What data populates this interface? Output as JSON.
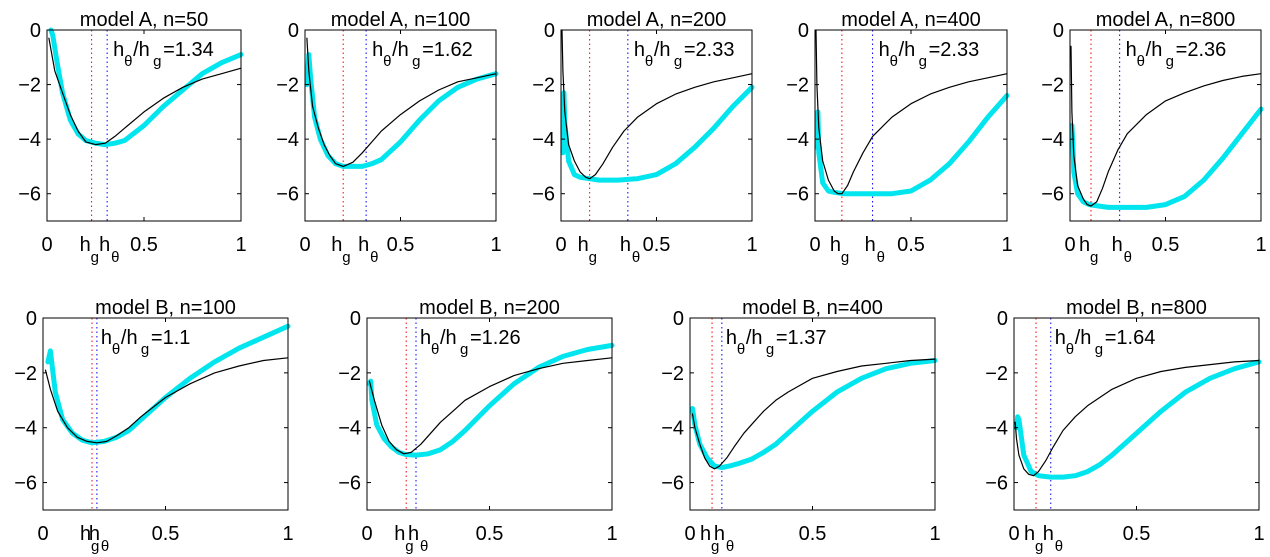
{
  "chart_data": [
    {
      "type": "line",
      "title": "model A, n=50",
      "ratio_label": "=1.34",
      "xlim": [
        0,
        1
      ],
      "ylim": [
        -7,
        0
      ],
      "xticks": [
        "0",
        "0.5",
        "1"
      ],
      "yticks": [
        "0",
        "−2",
        "−4",
        "−6"
      ],
      "h_g": 0.23,
      "h_theta": 0.31,
      "series": [
        {
          "color": "#00e5ee",
          "x": [
            0.02,
            0.03,
            0.05,
            0.08,
            0.12,
            0.16,
            0.2,
            0.25,
            0.3,
            0.35,
            0.4,
            0.5,
            0.6,
            0.7,
            0.8,
            0.9,
            1.0
          ],
          "y": [
            0.0,
            -0.2,
            -1.1,
            -2.3,
            -3.3,
            -3.8,
            -4.05,
            -4.15,
            -4.2,
            -4.15,
            -4.05,
            -3.5,
            -2.8,
            -2.2,
            -1.6,
            -1.2,
            -0.9
          ]
        },
        {
          "color": "#000000",
          "x": [
            0.01,
            0.04,
            0.08,
            0.12,
            0.16,
            0.2,
            0.25,
            0.3,
            0.35,
            0.4,
            0.5,
            0.6,
            0.7,
            0.8,
            0.9,
            1.0
          ],
          "y": [
            -0.3,
            -1.5,
            -2.3,
            -3.1,
            -3.7,
            -4.1,
            -4.2,
            -4.15,
            -3.9,
            -3.6,
            -3.0,
            -2.5,
            -2.1,
            -1.8,
            -1.6,
            -1.4
          ]
        }
      ]
    },
    {
      "type": "line",
      "title": "model A, n=100",
      "ratio_label": "=1.62",
      "xlim": [
        0,
        1
      ],
      "ylim": [
        -7,
        0
      ],
      "xticks": [
        "0",
        "0.5",
        "1"
      ],
      "yticks": [
        "0",
        "−2",
        "−4",
        "−6"
      ],
      "h_g": 0.2,
      "h_theta": 0.32,
      "series": [
        {
          "color": "#00e5ee",
          "x": [
            0.01,
            0.02,
            0.03,
            0.05,
            0.08,
            0.12,
            0.16,
            0.2,
            0.25,
            0.3,
            0.35,
            0.4,
            0.5,
            0.6,
            0.7,
            0.8,
            0.9,
            1.0
          ],
          "y": [
            -2.0,
            -0.9,
            -1.8,
            -3.2,
            -4.0,
            -4.6,
            -4.9,
            -5.0,
            -5.0,
            -5.0,
            -4.9,
            -4.75,
            -4.1,
            -3.3,
            -2.6,
            -2.1,
            -1.8,
            -1.6
          ]
        },
        {
          "color": "#000000",
          "x": [
            0.01,
            0.02,
            0.04,
            0.07,
            0.1,
            0.13,
            0.16,
            0.2,
            0.25,
            0.3,
            0.35,
            0.4,
            0.5,
            0.6,
            0.7,
            0.8,
            0.9,
            1.0
          ],
          "y": [
            -0.3,
            -1.5,
            -2.8,
            -3.6,
            -4.2,
            -4.6,
            -4.9,
            -5.0,
            -4.85,
            -4.5,
            -4.1,
            -3.7,
            -3.1,
            -2.6,
            -2.2,
            -1.9,
            -1.75,
            -1.6
          ]
        }
      ]
    },
    {
      "type": "line",
      "title": "model A, n=200",
      "ratio_label": "=2.33",
      "xlim": [
        0,
        1
      ],
      "ylim": [
        -7,
        0
      ],
      "xticks": [
        "0",
        "0.5",
        "1"
      ],
      "yticks": [
        "0",
        "−2",
        "−4",
        "−6"
      ],
      "h_g": 0.15,
      "h_theta": 0.35,
      "series": [
        {
          "color": "#00e5ee",
          "x": [
            0.01,
            0.015,
            0.02,
            0.04,
            0.07,
            0.1,
            0.15,
            0.2,
            0.3,
            0.4,
            0.5,
            0.6,
            0.7,
            0.8,
            0.9,
            1.0
          ],
          "y": [
            -4.5,
            -2.3,
            -3.4,
            -4.8,
            -5.3,
            -5.4,
            -5.45,
            -5.5,
            -5.5,
            -5.45,
            -5.3,
            -4.9,
            -4.3,
            -3.6,
            -2.8,
            -2.1
          ]
        },
        {
          "color": "#000000",
          "x": [
            0.005,
            0.01,
            0.02,
            0.04,
            0.07,
            0.1,
            0.13,
            0.15,
            0.18,
            0.22,
            0.27,
            0.33,
            0.4,
            0.5,
            0.6,
            0.7,
            0.8,
            0.9,
            1.0
          ],
          "y": [
            0.0,
            -1.5,
            -3.0,
            -4.2,
            -4.8,
            -5.2,
            -5.4,
            -5.45,
            -5.3,
            -4.9,
            -4.3,
            -3.7,
            -3.2,
            -2.7,
            -2.35,
            -2.1,
            -1.9,
            -1.75,
            -1.6
          ]
        }
      ]
    },
    {
      "type": "line",
      "title": "model A, n=400",
      "ratio_label": "=2.33",
      "xlim": [
        0,
        1
      ],
      "ylim": [
        -7,
        0
      ],
      "xticks": [
        "0",
        "0.5",
        "1"
      ],
      "yticks": [
        "0",
        "−2",
        "−4",
        "−6"
      ],
      "h_g": 0.14,
      "h_theta": 0.3,
      "series": [
        {
          "color": "#00e5ee",
          "x": [
            0.01,
            0.015,
            0.02,
            0.04,
            0.07,
            0.1,
            0.15,
            0.2,
            0.3,
            0.4,
            0.5,
            0.6,
            0.7,
            0.8,
            0.9,
            1.0
          ],
          "y": [
            -4.3,
            -3.0,
            -4.5,
            -5.6,
            -5.9,
            -5.95,
            -6.0,
            -6.0,
            -6.0,
            -6.0,
            -5.9,
            -5.5,
            -4.9,
            -4.1,
            -3.2,
            -2.4
          ]
        },
        {
          "color": "#000000",
          "x": [
            0.005,
            0.01,
            0.02,
            0.04,
            0.07,
            0.1,
            0.12,
            0.14,
            0.17,
            0.2,
            0.25,
            0.3,
            0.4,
            0.5,
            0.6,
            0.7,
            0.8,
            0.9,
            1.0
          ],
          "y": [
            0.0,
            -2.0,
            -3.6,
            -4.8,
            -5.5,
            -5.9,
            -6.0,
            -6.0,
            -5.7,
            -5.2,
            -4.5,
            -3.9,
            -3.2,
            -2.7,
            -2.35,
            -2.1,
            -1.9,
            -1.75,
            -1.6
          ]
        }
      ]
    },
    {
      "type": "line",
      "title": "model A, n=800",
      "ratio_label": "=2.36",
      "xlim": [
        0,
        1
      ],
      "ylim": [
        -7,
        0
      ],
      "xticks": [
        "0",
        "0.5",
        "1"
      ],
      "yticks": [
        "0",
        "−2",
        "−4",
        "−6"
      ],
      "h_g": 0.11,
      "h_theta": 0.26,
      "series": [
        {
          "color": "#00e5ee",
          "x": [
            0.01,
            0.015,
            0.02,
            0.04,
            0.07,
            0.1,
            0.15,
            0.2,
            0.3,
            0.4,
            0.5,
            0.6,
            0.7,
            0.8,
            0.9,
            1.0
          ],
          "y": [
            -3.5,
            -4.2,
            -5.2,
            -6.0,
            -6.3,
            -6.4,
            -6.45,
            -6.5,
            -6.5,
            -6.5,
            -6.4,
            -6.1,
            -5.5,
            -4.7,
            -3.8,
            -2.9
          ]
        },
        {
          "color": "#000000",
          "x": [
            0.005,
            0.01,
            0.02,
            0.04,
            0.07,
            0.09,
            0.11,
            0.14,
            0.17,
            0.2,
            0.25,
            0.3,
            0.4,
            0.5,
            0.6,
            0.7,
            0.8,
            0.9,
            1.0
          ],
          "y": [
            -0.6,
            -3.0,
            -4.6,
            -5.7,
            -6.2,
            -6.4,
            -6.45,
            -6.3,
            -5.8,
            -5.2,
            -4.4,
            -3.8,
            -3.1,
            -2.6,
            -2.3,
            -2.05,
            -1.85,
            -1.7,
            -1.6
          ]
        }
      ]
    },
    {
      "type": "line",
      "title": "model B, n=100",
      "ratio_label": "=1.1",
      "xlim": [
        0,
        1
      ],
      "ylim": [
        -7,
        0
      ],
      "xticks": [
        "0",
        "0.5",
        "1"
      ],
      "yticks": [
        "0",
        "−2",
        "−4",
        "−6"
      ],
      "h_g": 0.2,
      "h_theta": 0.22,
      "series": [
        {
          "color": "#00e5ee",
          "x": [
            0.02,
            0.03,
            0.05,
            0.08,
            0.12,
            0.16,
            0.2,
            0.25,
            0.3,
            0.35,
            0.4,
            0.5,
            0.6,
            0.7,
            0.8,
            0.9,
            1.0
          ],
          "y": [
            -1.6,
            -1.2,
            -2.7,
            -3.7,
            -4.2,
            -4.45,
            -4.55,
            -4.5,
            -4.35,
            -4.1,
            -3.7,
            -2.9,
            -2.2,
            -1.6,
            -1.1,
            -0.7,
            -0.3
          ]
        },
        {
          "color": "#000000",
          "x": [
            0.01,
            0.03,
            0.06,
            0.1,
            0.14,
            0.18,
            0.22,
            0.26,
            0.3,
            0.35,
            0.4,
            0.5,
            0.6,
            0.7,
            0.8,
            0.9,
            1.0
          ],
          "y": [
            -1.9,
            -2.6,
            -3.4,
            -4.0,
            -4.35,
            -4.5,
            -4.55,
            -4.5,
            -4.3,
            -4.0,
            -3.6,
            -2.9,
            -2.4,
            -2.0,
            -1.75,
            -1.55,
            -1.45
          ]
        }
      ]
    },
    {
      "type": "line",
      "title": "model B, n=200",
      "ratio_label": "=1.26",
      "xlim": [
        0,
        1
      ],
      "ylim": [
        -7,
        0
      ],
      "xticks": [
        "0",
        "0.5",
        "1"
      ],
      "yticks": [
        "0",
        "−2",
        "−4",
        "−6"
      ],
      "h_g": 0.16,
      "h_theta": 0.2,
      "series": [
        {
          "color": "#00e5ee",
          "x": [
            0.01,
            0.015,
            0.02,
            0.04,
            0.07,
            0.1,
            0.13,
            0.16,
            0.2,
            0.25,
            0.3,
            0.35,
            0.4,
            0.5,
            0.6,
            0.7,
            0.8,
            0.9,
            1.0
          ],
          "y": [
            -2.4,
            -2.3,
            -3.0,
            -3.9,
            -4.4,
            -4.7,
            -4.9,
            -4.98,
            -5.0,
            -4.95,
            -4.8,
            -4.5,
            -4.1,
            -3.2,
            -2.4,
            -1.8,
            -1.4,
            -1.15,
            -1.0
          ]
        },
        {
          "color": "#000000",
          "x": [
            0.01,
            0.03,
            0.06,
            0.09,
            0.12,
            0.15,
            0.18,
            0.22,
            0.26,
            0.3,
            0.35,
            0.4,
            0.5,
            0.6,
            0.7,
            0.8,
            0.9,
            1.0
          ],
          "y": [
            -2.3,
            -3.0,
            -3.9,
            -4.5,
            -4.8,
            -4.95,
            -4.9,
            -4.6,
            -4.2,
            -3.8,
            -3.4,
            -3.0,
            -2.5,
            -2.1,
            -1.85,
            -1.65,
            -1.55,
            -1.45
          ]
        }
      ]
    },
    {
      "type": "line",
      "title": "model B, n=400",
      "ratio_label": "=1.37",
      "xlim": [
        0,
        1
      ],
      "ylim": [
        -7,
        0
      ],
      "xticks": [
        "0",
        "0.5",
        "1"
      ],
      "yticks": [
        "0",
        "−2",
        "−4",
        "−6"
      ],
      "h_g": 0.09,
      "h_theta": 0.13,
      "series": [
        {
          "color": "#00e5ee",
          "x": [
            0.01,
            0.02,
            0.04,
            0.07,
            0.1,
            0.13,
            0.16,
            0.2,
            0.25,
            0.3,
            0.35,
            0.4,
            0.5,
            0.6,
            0.7,
            0.8,
            0.9,
            1.0
          ],
          "y": [
            -3.3,
            -3.9,
            -4.6,
            -5.1,
            -5.4,
            -5.45,
            -5.4,
            -5.3,
            -5.15,
            -4.9,
            -4.6,
            -4.2,
            -3.4,
            -2.7,
            -2.2,
            -1.85,
            -1.65,
            -1.55
          ]
        },
        {
          "color": "#000000",
          "x": [
            0.01,
            0.02,
            0.04,
            0.06,
            0.08,
            0.1,
            0.12,
            0.15,
            0.18,
            0.22,
            0.26,
            0.3,
            0.35,
            0.4,
            0.5,
            0.6,
            0.7,
            0.8,
            0.9,
            1.0
          ],
          "y": [
            -3.5,
            -4.0,
            -4.6,
            -5.1,
            -5.4,
            -5.5,
            -5.4,
            -5.1,
            -4.7,
            -4.2,
            -3.8,
            -3.4,
            -3.0,
            -2.7,
            -2.2,
            -1.95,
            -1.75,
            -1.65,
            -1.55,
            -1.5
          ]
        }
      ]
    },
    {
      "type": "line",
      "title": "model B, n=800",
      "ratio_label": "=1.64",
      "xlim": [
        0,
        1
      ],
      "ylim": [
        -7,
        0
      ],
      "xticks": [
        "0",
        "0.5",
        "1"
      ],
      "yticks": [
        "0",
        "−2",
        "−4",
        "−6"
      ],
      "h_g": 0.09,
      "h_theta": 0.15,
      "series": [
        {
          "color": "#00e5ee",
          "x": [
            0.01,
            0.015,
            0.02,
            0.04,
            0.07,
            0.1,
            0.15,
            0.2,
            0.25,
            0.3,
            0.35,
            0.4,
            0.5,
            0.6,
            0.7,
            0.8,
            0.9,
            1.0
          ],
          "y": [
            -4.0,
            -3.6,
            -3.7,
            -5.0,
            -5.6,
            -5.75,
            -5.8,
            -5.8,
            -5.75,
            -5.6,
            -5.35,
            -5.0,
            -4.2,
            -3.4,
            -2.7,
            -2.2,
            -1.85,
            -1.6
          ]
        },
        {
          "color": "#000000",
          "x": [
            0.005,
            0.01,
            0.02,
            0.04,
            0.06,
            0.08,
            0.1,
            0.13,
            0.16,
            0.2,
            0.25,
            0.3,
            0.4,
            0.5,
            0.6,
            0.7,
            0.8,
            0.9,
            1.0
          ],
          "y": [
            -3.8,
            -4.4,
            -5.0,
            -5.5,
            -5.7,
            -5.75,
            -5.6,
            -5.2,
            -4.7,
            -4.1,
            -3.6,
            -3.2,
            -2.6,
            -2.2,
            -1.95,
            -1.8,
            -1.7,
            -1.6,
            -1.55
          ]
        }
      ]
    }
  ]
}
